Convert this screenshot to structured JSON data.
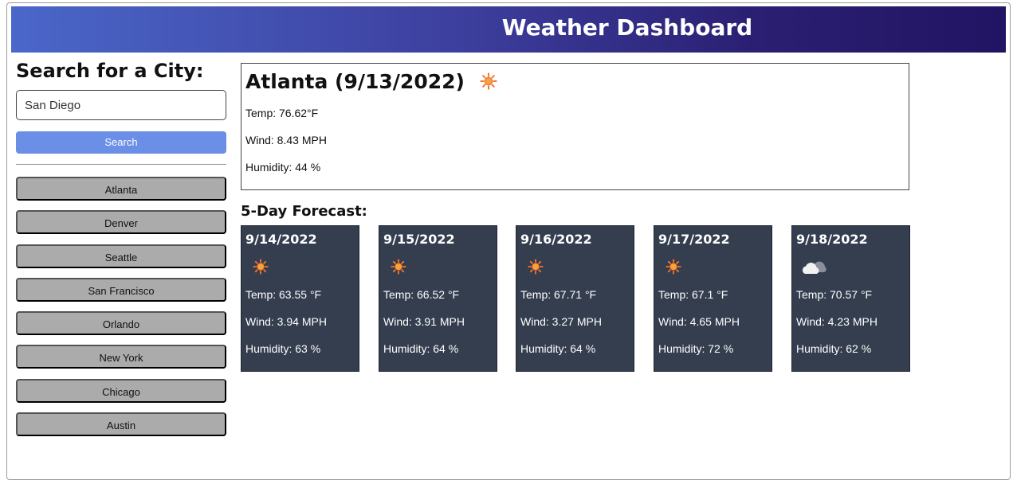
{
  "header": {
    "title": "Weather Dashboard"
  },
  "search": {
    "title": "Search for a City:",
    "input_value": "San Diego",
    "button_label": "Search"
  },
  "history": [
    "Atlanta",
    "Denver",
    "Seattle",
    "San Francisco",
    "Orlando",
    "New York",
    "Chicago",
    "Austin"
  ],
  "current": {
    "heading": "Atlanta (9/13/2022)",
    "icon": "sun-icon",
    "temp": "Temp: 76.62°F",
    "wind": "Wind: 8.43 MPH",
    "humidity": "Humidity: 44 %"
  },
  "forecast": {
    "title": "5-Day Forecast:",
    "days": [
      {
        "date": "9/14/2022",
        "icon": "sun-icon",
        "temp": "Temp: 63.55 °F",
        "wind": "Wind: 3.94 MPH",
        "humidity": "Humidity: 63 %"
      },
      {
        "date": "9/15/2022",
        "icon": "sun-icon",
        "temp": "Temp: 66.52 °F",
        "wind": "Wind: 3.91 MPH",
        "humidity": "Humidity: 64 %"
      },
      {
        "date": "9/16/2022",
        "icon": "sun-icon",
        "temp": "Temp: 67.71 °F",
        "wind": "Wind: 3.27 MPH",
        "humidity": "Humidity: 64 %"
      },
      {
        "date": "9/17/2022",
        "icon": "sun-icon",
        "temp": "Temp: 67.1 °F",
        "wind": "Wind: 4.65 MPH",
        "humidity": "Humidity: 72 %"
      },
      {
        "date": "9/18/2022",
        "icon": "cloud-icon",
        "temp": "Temp: 70.57 °F",
        "wind": "Wind: 4.23 MPH",
        "humidity": "Humidity: 62 %"
      }
    ]
  },
  "colors": {
    "header_start": "#4a67c9",
    "header_end": "#221463",
    "search_button": "#6b8fe6",
    "history_button": "#ababab",
    "card_bg": "#343e4f"
  }
}
